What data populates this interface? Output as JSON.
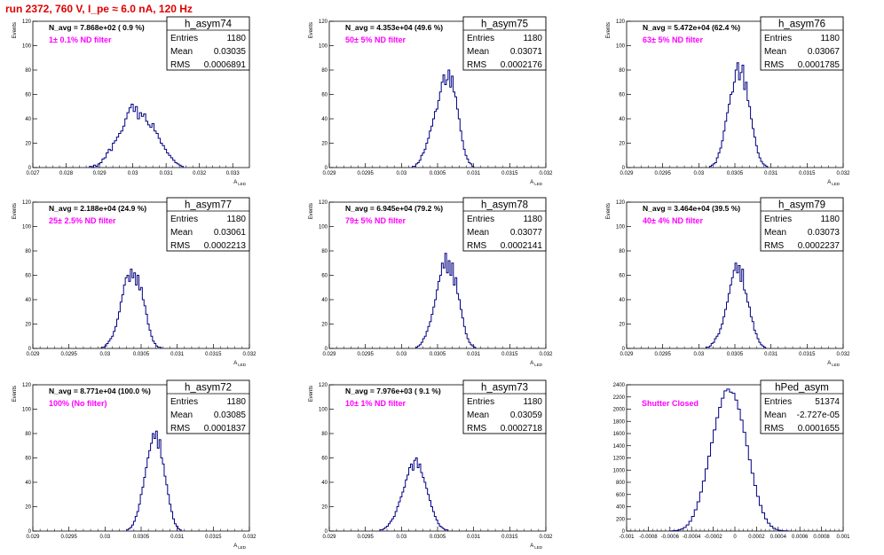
{
  "run_title": "run 2372,   760 V, I_pe ≈ 6.0 nA, 120 Hz",
  "colors": {
    "title": "#e00000",
    "filter_label": "#ff00ff",
    "histogram": "#000080",
    "frame": "#000000"
  },
  "chart_data": [
    {
      "type": "histogram",
      "title": "h_asym74",
      "n_avg_label": "N_avg = 7.868e+02 ( 0.9 %)",
      "filter_label": "1± 0.1% ND filter",
      "ylabel": "Events",
      "xlabel": "A",
      "xlabel_sub": "LED",
      "xlim": [
        0.027,
        0.0335
      ],
      "ylim": [
        0,
        120
      ],
      "x_ticks": [
        0.027,
        0.028,
        0.029,
        0.03,
        0.031,
        0.032,
        0.033
      ],
      "x_tick_labels": [
        "0.027",
        "0.028",
        "0.029",
        "0.03",
        "0.031",
        "0.032",
        "0.033"
      ],
      "y_ticks": [
        0,
        20,
        40,
        60,
        80,
        100,
        120
      ],
      "stats": [
        {
          "label": "Entries",
          "value": "1180"
        },
        {
          "label": "Mean",
          "value": "0.03035"
        },
        {
          "label": "RMS",
          "value": "0.0006891"
        }
      ],
      "bin_low": 0.0287,
      "bin_width": 6.25e-05,
      "values": [
        1,
        0,
        2,
        1,
        3,
        4,
        7,
        8,
        12,
        15,
        14,
        20,
        22,
        25,
        28,
        30,
        34,
        40,
        45,
        49,
        52,
        46,
        50,
        40,
        45,
        42,
        44,
        38,
        35,
        33,
        36,
        30,
        28,
        24,
        20,
        18,
        15,
        12,
        10,
        8,
        6,
        4,
        3,
        2,
        1
      ]
    },
    {
      "type": "histogram",
      "title": "h_asym75",
      "n_avg_label": "N_avg = 4.353e+04 (49.6 %)",
      "filter_label": "50± 5% ND filter",
      "ylabel": "Events",
      "xlabel": "A",
      "xlabel_sub": "LED",
      "xlim": [
        0.029,
        0.032
      ],
      "ylim": [
        0,
        120
      ],
      "x_ticks": [
        0.029,
        0.0295,
        0.03,
        0.0305,
        0.031,
        0.0315,
        0.032
      ],
      "x_tick_labels": [
        "0.029",
        "0.0295",
        "0.03",
        "0.0305",
        "0.031",
        "0.0315",
        "0.032"
      ],
      "y_ticks": [
        0,
        20,
        40,
        60,
        80,
        100,
        120
      ],
      "stats": [
        {
          "label": "Entries",
          "value": "1180"
        },
        {
          "label": "Mean",
          "value": "0.03071"
        },
        {
          "label": "RMS",
          "value": "0.0002176"
        }
      ],
      "bin_low": 0.03015,
      "bin_width": 2.36e-05,
      "values": [
        1,
        1,
        3,
        4,
        6,
        10,
        12,
        15,
        20,
        24,
        30,
        34,
        40,
        46,
        48,
        55,
        62,
        70,
        76,
        68,
        72,
        80,
        66,
        75,
        62,
        58,
        48,
        40,
        30,
        22,
        15,
        10,
        7,
        4,
        3,
        1
      ]
    },
    {
      "type": "histogram",
      "title": "h_asym76",
      "n_avg_label": "N_avg = 5.472e+04 (62.4 %)",
      "filter_label": "63± 5% ND filter",
      "ylabel": "Events",
      "xlabel": "A",
      "xlabel_sub": "LED",
      "xlim": [
        0.029,
        0.032
      ],
      "ylim": [
        0,
        120
      ],
      "x_ticks": [
        0.029,
        0.0295,
        0.03,
        0.0305,
        0.031,
        0.0315,
        0.032
      ],
      "x_tick_labels": [
        "0.029",
        "0.0295",
        "0.03",
        "0.0305",
        "0.031",
        "0.0315",
        "0.032"
      ],
      "y_ticks": [
        0,
        20,
        40,
        60,
        80,
        100,
        120
      ],
      "stats": [
        {
          "label": "Entries",
          "value": "1180"
        },
        {
          "label": "Mean",
          "value": "0.03067"
        },
        {
          "label": "RMS",
          "value": "0.0001785"
        }
      ],
      "bin_low": 0.03015,
      "bin_width": 2.36e-05,
      "values": [
        1,
        2,
        3,
        4,
        8,
        12,
        16,
        22,
        30,
        38,
        45,
        52,
        60,
        62,
        70,
        80,
        86,
        72,
        78,
        84,
        64,
        70,
        55,
        50,
        40,
        32,
        25,
        18,
        12,
        8,
        5,
        3,
        2,
        1
      ]
    },
    {
      "type": "histogram",
      "title": "h_asym77",
      "n_avg_label": "N_avg = 2.188e+04 (24.9 %)",
      "filter_label": "25± 2.5% ND filter",
      "ylabel": "Events",
      "xlabel": "A",
      "xlabel_sub": "LED",
      "xlim": [
        0.029,
        0.032
      ],
      "ylim": [
        0,
        120
      ],
      "x_ticks": [
        0.029,
        0.0295,
        0.03,
        0.0305,
        0.031,
        0.0315,
        0.032
      ],
      "x_tick_labels": [
        "0.029",
        "0.0295",
        "0.03",
        "0.0305",
        "0.031",
        "0.0315",
        "0.032"
      ],
      "y_ticks": [
        0,
        20,
        40,
        60,
        80,
        100,
        120
      ],
      "stats": [
        {
          "label": "Entries",
          "value": "1180"
        },
        {
          "label": "Mean",
          "value": "0.03061"
        },
        {
          "label": "RMS",
          "value": "0.0002213"
        }
      ],
      "bin_low": 0.02995,
      "bin_width": 2.36e-05,
      "values": [
        1,
        1,
        2,
        4,
        6,
        8,
        10,
        14,
        18,
        24,
        30,
        38,
        44,
        52,
        58,
        60,
        55,
        65,
        58,
        62,
        52,
        60,
        48,
        50,
        40,
        35,
        28,
        20,
        15,
        10,
        6,
        4,
        2,
        1,
        1
      ]
    },
    {
      "type": "histogram",
      "title": "h_asym78",
      "n_avg_label": "N_avg = 6.945e+04 (79.2 %)",
      "filter_label": "79± 5% ND filter",
      "ylabel": "Events",
      "xlabel": "A",
      "xlabel_sub": "LED",
      "xlim": [
        0.029,
        0.032
      ],
      "ylim": [
        0,
        120
      ],
      "x_ticks": [
        0.029,
        0.0295,
        0.03,
        0.0305,
        0.031,
        0.0315,
        0.032
      ],
      "x_tick_labels": [
        "0.029",
        "0.0295",
        "0.03",
        "0.0305",
        "0.031",
        "0.0315",
        "0.032"
      ],
      "y_ticks": [
        0,
        20,
        40,
        60,
        80,
        100,
        120
      ],
      "stats": [
        {
          "label": "Entries",
          "value": "1180"
        },
        {
          "label": "Mean",
          "value": "0.03077"
        },
        {
          "label": "RMS",
          "value": "0.0002141"
        }
      ],
      "bin_low": 0.0302,
      "bin_width": 2.36e-05,
      "values": [
        1,
        2,
        3,
        5,
        8,
        10,
        14,
        18,
        22,
        28,
        34,
        40,
        48,
        55,
        60,
        70,
        66,
        78,
        62,
        72,
        60,
        70,
        52,
        58,
        45,
        40,
        32,
        25,
        18,
        12,
        8,
        5,
        3,
        2,
        1
      ]
    },
    {
      "type": "histogram",
      "title": "h_asym79",
      "n_avg_label": "N_avg = 3.464e+04 (39.5 %)",
      "filter_label": "40± 4% ND filter",
      "ylabel": "Events",
      "xlabel": "A",
      "xlabel_sub": "LED",
      "xlim": [
        0.029,
        0.032
      ],
      "ylim": [
        0,
        120
      ],
      "x_ticks": [
        0.029,
        0.0295,
        0.03,
        0.0305,
        0.031,
        0.0315,
        0.032
      ],
      "x_tick_labels": [
        "0.029",
        "0.0295",
        "0.03",
        "0.0305",
        "0.031",
        "0.0315",
        "0.032"
      ],
      "y_ticks": [
        0,
        20,
        40,
        60,
        80,
        100,
        120
      ],
      "stats": [
        {
          "label": "Entries",
          "value": "1180"
        },
        {
          "label": "Mean",
          "value": "0.03073"
        },
        {
          "label": "RMS",
          "value": "0.0002237"
        }
      ],
      "bin_low": 0.0301,
      "bin_width": 2.36e-05,
      "values": [
        1,
        1,
        2,
        4,
        5,
        8,
        10,
        12,
        16,
        20,
        26,
        32,
        38,
        45,
        52,
        58,
        64,
        70,
        62,
        68,
        55,
        65,
        48,
        45,
        38,
        34,
        26,
        22,
        15,
        12,
        8,
        5,
        3,
        2,
        1
      ]
    },
    {
      "type": "histogram",
      "title": "h_asym72",
      "n_avg_label": "N_avg = 8.771e+04 (100.0 %)",
      "filter_label": "100% (No filter)",
      "ylabel": "Events",
      "xlabel": "A",
      "xlabel_sub": "LED",
      "xlim": [
        0.029,
        0.032
      ],
      "ylim": [
        0,
        120
      ],
      "x_ticks": [
        0.029,
        0.0295,
        0.03,
        0.0305,
        0.031,
        0.0315,
        0.032
      ],
      "x_tick_labels": [
        "0.029",
        "0.0295",
        "0.03",
        "0.0305",
        "0.031",
        "0.0315",
        "0.032"
      ],
      "y_ticks": [
        0,
        20,
        40,
        60,
        80,
        100,
        120
      ],
      "stats": [
        {
          "label": "Entries",
          "value": "1180"
        },
        {
          "label": "Mean",
          "value": "0.03085"
        },
        {
          "label": "RMS",
          "value": "0.0001837"
        }
      ],
      "bin_low": 0.0303,
      "bin_width": 2.36e-05,
      "values": [
        1,
        2,
        3,
        5,
        8,
        12,
        16,
        22,
        30,
        36,
        44,
        52,
        60,
        66,
        72,
        80,
        76,
        82,
        68,
        75,
        60,
        55,
        45,
        38,
        30,
        22,
        16,
        10,
        6,
        4,
        2,
        1
      ]
    },
    {
      "type": "histogram",
      "title": "h_asym73",
      "n_avg_label": "N_avg = 7.976e+03 ( 9.1 %)",
      "filter_label": "10± 1% ND filter",
      "ylabel": "Events",
      "xlabel": "A",
      "xlabel_sub": "LED",
      "xlim": [
        0.029,
        0.032
      ],
      "ylim": [
        0,
        120
      ],
      "x_ticks": [
        0.029,
        0.0295,
        0.03,
        0.0305,
        0.031,
        0.0315,
        0.032
      ],
      "x_tick_labels": [
        "0.029",
        "0.0295",
        "0.03",
        "0.0305",
        "0.031",
        "0.0315",
        "0.032"
      ],
      "y_ticks": [
        0,
        20,
        40,
        60,
        80,
        100,
        120
      ],
      "stats": [
        {
          "label": "Entries",
          "value": "1180"
        },
        {
          "label": "Mean",
          "value": "0.03059"
        },
        {
          "label": "RMS",
          "value": "0.0002718"
        }
      ],
      "bin_low": 0.0297,
      "bin_width": 2.36e-05,
      "values": [
        1,
        1,
        2,
        3,
        4,
        6,
        8,
        10,
        12,
        16,
        20,
        24,
        28,
        32,
        36,
        42,
        46,
        52,
        55,
        50,
        58,
        60,
        52,
        55,
        48,
        44,
        40,
        35,
        30,
        25,
        20,
        16,
        12,
        9,
        6,
        4,
        3,
        2,
        1,
        1
      ]
    },
    {
      "type": "histogram",
      "title": "hPed_asym",
      "n_avg_label": "",
      "filter_label": "Shutter Closed",
      "ylabel": "",
      "xlabel": "",
      "xlabel_sub": "",
      "xlim": [
        -0.001,
        0.001
      ],
      "ylim": [
        0,
        2400
      ],
      "x_ticks": [
        -0.001,
        -0.0008,
        -0.0006,
        -0.0004,
        -0.0002,
        0,
        0.0002,
        0.0004,
        0.0006,
        0.0008,
        0.001
      ],
      "x_tick_labels": [
        "-0.001",
        "-0.0008",
        "-0.0006",
        "-0.0004",
        "-0.0002",
        "0",
        "0.0002",
        "0.0004",
        "0.0006",
        "0.0008",
        "0.001"
      ],
      "y_ticks": [
        0,
        200,
        400,
        600,
        800,
        1000,
        1200,
        1400,
        1600,
        1800,
        2000,
        2200,
        2400
      ],
      "stats": [
        {
          "label": "Entries",
          "value": "51374"
        },
        {
          "label": "Mean",
          "value": "-2.727e-05"
        },
        {
          "label": "RMS",
          "value": "0.0001655"
        }
      ],
      "bin_low": -0.0006,
      "bin_width": 2.5e-05,
      "values": [
        2,
        5,
        10,
        20,
        35,
        60,
        100,
        160,
        240,
        350,
        480,
        640,
        820,
        1020,
        1230,
        1450,
        1660,
        1860,
        2030,
        2180,
        2300,
        2330,
        2280,
        2260,
        2150,
        2000,
        1820,
        1620,
        1400,
        1170,
        950,
        750,
        570,
        420,
        300,
        200,
        130,
        80,
        45,
        25,
        12,
        6,
        3,
        1
      ]
    }
  ]
}
